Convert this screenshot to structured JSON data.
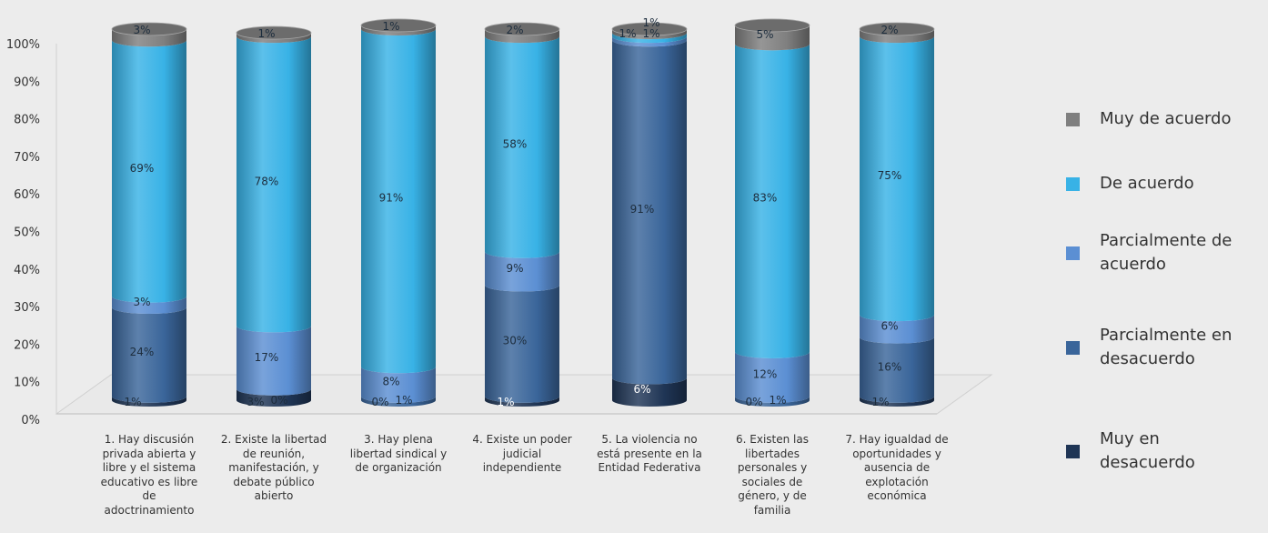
{
  "chart_data": {
    "type": "bar",
    "stacked": true,
    "style": "3d-cylinder",
    "title": "",
    "xlabel": "",
    "ylabel": "",
    "ylim": [
      0,
      100
    ],
    "y_ticks": [
      "0%",
      "10%",
      "20%",
      "30%",
      "40%",
      "50%",
      "60%",
      "70%",
      "80%",
      "90%",
      "100%"
    ],
    "categories": [
      "1. Hay discusión privada abierta y libre y  el sistema educativo es libre de adoctrinamiento",
      "2. Existe la libertad de reunión, manifestación, y debate público abierto",
      "3. Hay plena libertad sindical y de organización",
      "4. Existe un poder judicial independiente",
      "5. La violencia no está presente en la Entidad Federativa",
      "6. Existen las libertades personales y sociales de género,  y de familia",
      "7. Hay igualdad de oportunidades y ausencia de explotación económica"
    ],
    "series": [
      {
        "name": "Muy en desacuerdo",
        "color": "#1f3555",
        "values": [
          1,
          3,
          0,
          1,
          6,
          0,
          1
        ]
      },
      {
        "name": "Parcialmente en desacuerdo",
        "color": "#3a659a",
        "values": [
          24,
          0,
          1,
          30,
          91,
          1,
          16
        ]
      },
      {
        "name": "Parcialmente de acuerdo",
        "color": "#5b8fd3",
        "values": [
          3,
          17,
          8,
          9,
          1,
          12,
          6
        ]
      },
      {
        "name": "De acuerdo",
        "color": "#38b2e6",
        "values": [
          69,
          78,
          91,
          58,
          1,
          83,
          75
        ]
      },
      {
        "name": "Muy de acuerdo",
        "color": "#7f7f7f",
        "values": [
          3,
          1,
          1,
          2,
          1,
          5,
          2
        ]
      }
    ],
    "legend_position": "right",
    "legend_order": [
      "Muy de acuerdo",
      "De acuerdo",
      "Parcialmente de acuerdo",
      "Parcialmente en desacuerdo",
      "Muy en desacuerdo"
    ],
    "legend_labels": {
      "Muy de acuerdo": "Muy de acuerdo",
      "De acuerdo": "De acuerdo",
      "Parcialmente de acuerdo": "Parcialmente de acuerdo",
      "Parcialmente en desacuerdo": "Parcialmente en desacuerdo",
      "Muy en desacuerdo": "Muy en desacuerdo"
    },
    "category_lines": [
      [
        "1. Hay discusión",
        "privada abierta y",
        "libre y  el sistema",
        "educativo es libre",
        "de",
        "adoctrinamiento"
      ],
      [
        "2. Existe la libertad",
        "de reunión,",
        "manifestación, y",
        "debate público",
        "abierto"
      ],
      [
        "3. Hay plena",
        "libertad sindical y",
        "de organización"
      ],
      [
        "4. Existe un poder",
        "judicial",
        "independiente"
      ],
      [
        "5. La violencia no",
        "está presente en la",
        "Entidad Federativa"
      ],
      [
        "6. Existen las",
        "libertades",
        "personales y",
        "sociales de",
        "género,  y de",
        "familia"
      ],
      [
        "7. Hay igualdad de",
        "oportunidades y",
        "ausencia de",
        "explotación",
        "económica"
      ]
    ]
  }
}
